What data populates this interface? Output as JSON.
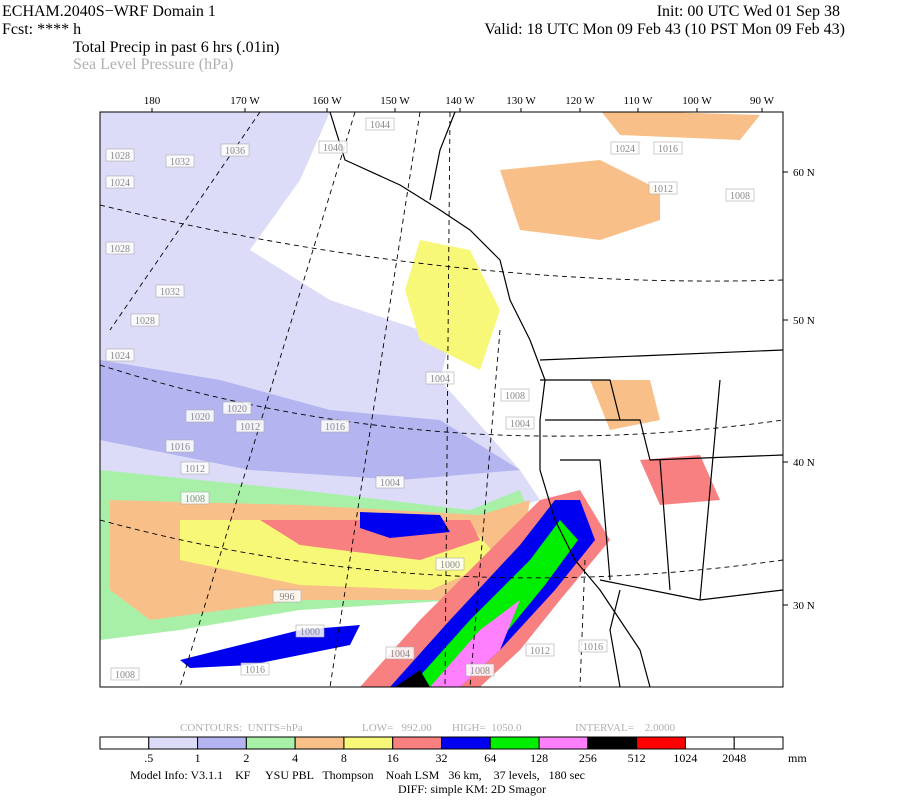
{
  "header": {
    "title": "ECHAM.2040S−WRF Domain 1",
    "init": "Init: 00 UTC Wed 01 Sep 38",
    "fcst": "Fcst: **** h",
    "valid": "Valid: 18 UTC Mon 09 Feb 43 (10 PST Mon 09 Feb 43)",
    "field1": "Total Precip in past 6 hrs (.01in)",
    "field2": "Sea Level Pressure (hPa)"
  },
  "map": {
    "lon_labels": [
      "180",
      "170 W",
      "160 W",
      "150 W",
      "140 W",
      "130 W",
      "120 W",
      "110 W",
      "100 W",
      "90 W"
    ],
    "lat_labels": [
      "60 N",
      "50 N",
      "40 N",
      "30 N"
    ],
    "isobar_labels": [
      "1044",
      "1040",
      "1036",
      "1032",
      "1028",
      "1024",
      "1024",
      "1016",
      "1012",
      "1008",
      "1028",
      "1032",
      "1028",
      "1024",
      "1020",
      "1020",
      "1016",
      "1016",
      "1012",
      "1012",
      "1008",
      "1004",
      "1008",
      "1004",
      "1004",
      "1000",
      "996",
      "1000",
      "1004",
      "1008",
      "1012",
      "1016",
      "1016",
      "1008"
    ]
  },
  "contours": {
    "units": "CONTOURS:  UNITS=hPa",
    "low": "LOW=   992.00",
    "high": "HIGH=  1050.0",
    "interval": "INTERVAL=    2.0000"
  },
  "colorbar": {
    "labels": [
      ".5",
      "1",
      "2",
      "4",
      "8",
      "16",
      "32",
      "64",
      "128",
      "256",
      "512",
      "1024",
      "2048"
    ],
    "unit": "mm",
    "colors": [
      "#ffffff",
      "#dcdcf8",
      "#b4b4f0",
      "#a8f0a8",
      "#f8c088",
      "#f8f878",
      "#f88080",
      "#0000f0",
      "#00ee00",
      "#ff80ff",
      "#000000",
      "#ff0000",
      "#ffffff",
      "#ffffff"
    ]
  },
  "footer": {
    "line1": "Model Info: V3.1.1    KF     YSU PBL   Thompson    Noah LSM   36 km,    37 levels,   180 sec",
    "line2": "DIFF: simple KM: 2D Smagor"
  }
}
